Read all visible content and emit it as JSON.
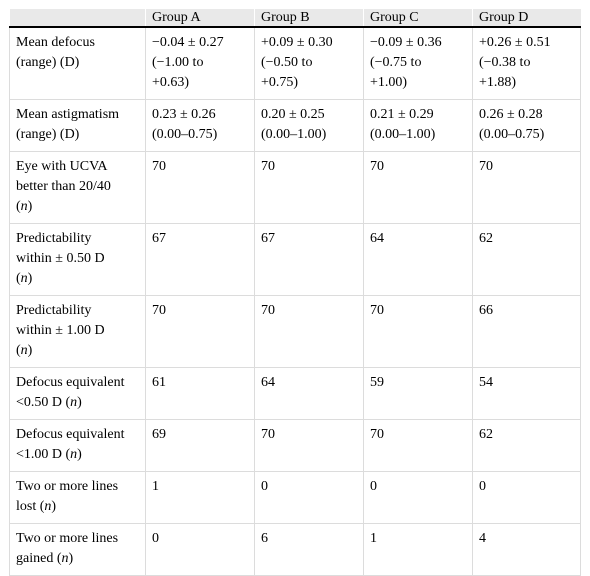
{
  "header": [
    "",
    "Group A",
    "Group B",
    "Group C",
    "Group D"
  ],
  "rows": [
    {
      "label": [
        {
          "t": "Mean defocus"
        },
        {
          "t": "(range) (D)"
        }
      ],
      "cells": [
        [
          "−0.04 ± 0.27",
          "(−1.00 to",
          "+0.63)"
        ],
        [
          "+0.09 ± 0.30",
          "(−0.50 to",
          "+0.75)"
        ],
        [
          "−0.09 ± 0.36",
          "(−0.75 to",
          "+1.00)"
        ],
        [
          "+0.26 ± 0.51",
          "(−0.38 to",
          "+1.88)"
        ]
      ]
    },
    {
      "label": [
        {
          "t": "Mean astigmatism"
        },
        {
          "t": "(range) (D)"
        }
      ],
      "cells": [
        [
          "0.23 ± 0.26",
          "(0.00–0.75)"
        ],
        [
          "0.20 ± 0.25",
          "(0.00–1.00)"
        ],
        [
          "0.21 ± 0.29",
          "(0.00–1.00)"
        ],
        [
          "0.26 ± 0.28",
          "(0.00–0.75)"
        ]
      ]
    },
    {
      "label": [
        {
          "t": "Eye with UCVA"
        },
        {
          "t": "better than 20/40"
        },
        {
          "t": "(",
          "i": "n",
          "a": ")"
        }
      ],
      "cells": [
        [
          "70"
        ],
        [
          "70"
        ],
        [
          "70"
        ],
        [
          "70"
        ]
      ]
    },
    {
      "label": [
        {
          "t": "Predictability"
        },
        {
          "t": "within ± 0.50 D"
        },
        {
          "t": "(",
          "i": "n",
          "a": ")"
        }
      ],
      "cells": [
        [
          "67"
        ],
        [
          "67"
        ],
        [
          "64"
        ],
        [
          "62"
        ]
      ]
    },
    {
      "label": [
        {
          "t": "Predictability"
        },
        {
          "t": "within ± 1.00 D"
        },
        {
          "t": "(",
          "i": "n",
          "a": ")"
        }
      ],
      "cells": [
        [
          "70"
        ],
        [
          "70"
        ],
        [
          "70"
        ],
        [
          "66"
        ]
      ]
    },
    {
      "label": [
        {
          "t": "Defocus equivalent"
        },
        {
          "t": "<0.50 D (",
          "i": "n",
          "a": ")"
        }
      ],
      "cells": [
        [
          "61"
        ],
        [
          "64"
        ],
        [
          "59"
        ],
        [
          "54"
        ]
      ]
    },
    {
      "label": [
        {
          "t": "Defocus equivalent"
        },
        {
          "t": "<1.00 D (",
          "i": "n",
          "a": ")"
        }
      ],
      "cells": [
        [
          "69"
        ],
        [
          "70"
        ],
        [
          "70"
        ],
        [
          "62"
        ]
      ]
    },
    {
      "label": [
        {
          "t": "Two or more lines"
        },
        {
          "t": "lost (",
          "i": "n",
          "a": ")"
        }
      ],
      "cells": [
        [
          "1"
        ],
        [
          "0"
        ],
        [
          "0"
        ],
        [
          "0"
        ]
      ]
    },
    {
      "label": [
        {
          "t": "Two or more lines"
        },
        {
          "t": "gained (",
          "i": "n",
          "a": ")"
        }
      ],
      "cells": [
        [
          "0"
        ],
        [
          "6"
        ],
        [
          "1"
        ],
        [
          "4"
        ]
      ]
    }
  ]
}
